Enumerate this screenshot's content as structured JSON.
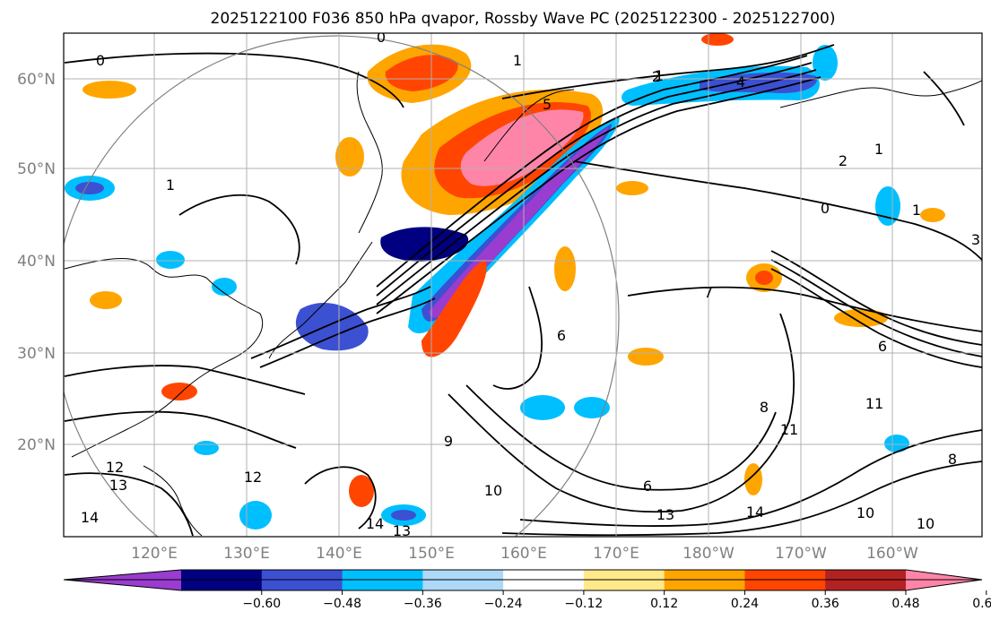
{
  "title": "2025122100 F036 850 hPa qvapor, Rossby Wave PC (2025122300 - 2025122700)",
  "map": {
    "lat_ticks": [
      "60°N",
      "50°N",
      "40°N",
      "30°N",
      "20°N"
    ],
    "lon_ticks": [
      "120°E",
      "130°E",
      "140°E",
      "150°E",
      "160°E",
      "170°E",
      "180°W",
      "170°W",
      "160°W"
    ],
    "lon_range": [
      111,
      210
    ],
    "lat_range": [
      10,
      65
    ]
  },
  "colorbar": {
    "tick_labels": [
      "−0.60",
      "−0.48",
      "−0.36",
      "−0.24",
      "−0.12",
      "0.12",
      "0.24",
      "0.36",
      "0.48",
      "0.60"
    ],
    "colors": [
      "#9a3ccf",
      "#000080",
      "#3c50d2",
      "#00bfff",
      "#add8f7",
      "#ffffff",
      "#ffe98a",
      "#ffa500",
      "#ff4500",
      "#b22222",
      "#ff85a8"
    ]
  },
  "contour_labels": [
    {
      "text": "0"
    },
    {
      "text": "1"
    },
    {
      "text": "2"
    },
    {
      "text": "4"
    },
    {
      "text": "1"
    },
    {
      "text": "1"
    },
    {
      "text": "0"
    },
    {
      "text": "1"
    },
    {
      "text": "5"
    },
    {
      "text": "6"
    },
    {
      "text": "7"
    },
    {
      "text": "6"
    },
    {
      "text": "8"
    },
    {
      "text": "9"
    },
    {
      "text": "10"
    },
    {
      "text": "11"
    },
    {
      "text": "11"
    },
    {
      "text": "12"
    },
    {
      "text": "13"
    },
    {
      "text": "14"
    },
    {
      "text": "14"
    },
    {
      "text": "13"
    },
    {
      "text": "12"
    },
    {
      "text": "6"
    },
    {
      "text": "8"
    },
    {
      "text": "10"
    },
    {
      "text": "13"
    },
    {
      "text": "14"
    },
    {
      "text": "10"
    },
    {
      "text": "2"
    },
    {
      "text": "1"
    },
    {
      "text": "0"
    },
    {
      "text": "3"
    }
  ]
}
